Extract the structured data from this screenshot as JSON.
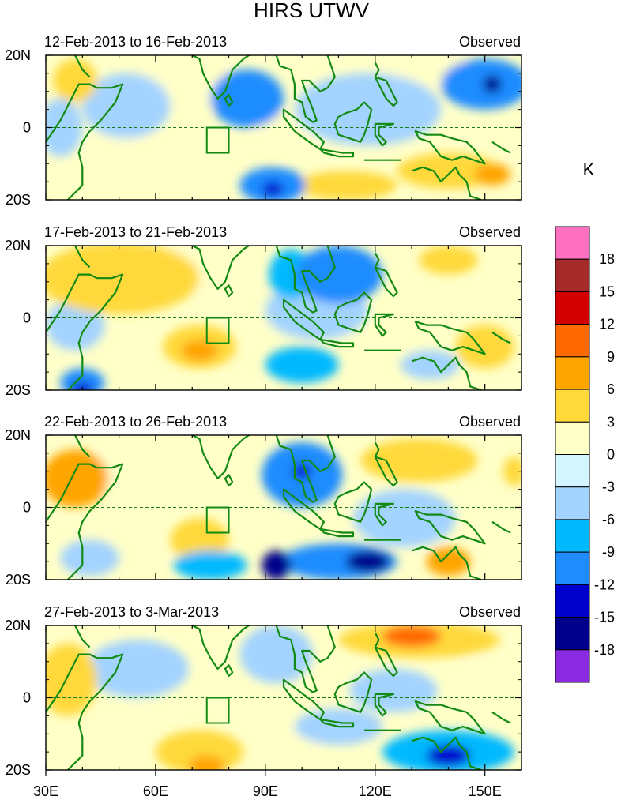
{
  "chart_data": {
    "type": "heatmap",
    "title": "HIRS UTWV",
    "units": "K",
    "xlim": [
      30,
      160
    ],
    "ylim": [
      -20,
      20
    ],
    "x_ticks": [
      {
        "value": 30,
        "label": "30E"
      },
      {
        "value": 60,
        "label": "60E"
      },
      {
        "value": 90,
        "label": "90E"
      },
      {
        "value": 120,
        "label": "120E"
      },
      {
        "value": 150,
        "label": "150E"
      }
    ],
    "y_ticks": [
      {
        "value": 20,
        "label": "20N"
      },
      {
        "value": 0,
        "label": "0"
      },
      {
        "value": -20,
        "label": "20S"
      }
    ],
    "box_region": {
      "lon": [
        74,
        80
      ],
      "lat": [
        -7,
        0
      ]
    },
    "colorbar": {
      "levels": [
        "18",
        "15",
        "12",
        "9",
        "6",
        "3",
        "0",
        "-3",
        "-6",
        "-9",
        "-12",
        "-15",
        "-18"
      ],
      "colors": [
        "#ff70c0",
        "#a52a2a",
        "#d40000",
        "#ff6a00",
        "#ffa500",
        "#ffd93a",
        "#ffffc8",
        "#d3f5ff",
        "#a3d3ff",
        "#00b9ff",
        "#1e8cff",
        "#0000cd",
        "#00008b",
        "#8a2be2"
      ]
    },
    "panels": [
      {
        "period": "12-Feb-2013 to 16-Feb-2013",
        "label": "Observed",
        "blobs": [
          {
            "lon": 63,
            "lat": -7,
            "rlon": 20,
            "rlat": 6,
            "v": 3
          },
          {
            "lon": 140,
            "lat": -12,
            "rlon": 14,
            "rlat": 5,
            "v": 5
          },
          {
            "lon": 152,
            "lat": -13,
            "rlon": 5,
            "rlat": 3,
            "v": 7
          },
          {
            "lon": 112,
            "lat": -16,
            "rlon": 14,
            "rlat": 4,
            "v": 5
          },
          {
            "lon": 95,
            "lat": -2,
            "rlon": 8,
            "rlat": 6,
            "v": 3
          },
          {
            "lon": 68,
            "lat": 12,
            "rlon": 12,
            "rlat": 9,
            "v": 3
          },
          {
            "lon": 38,
            "lat": 13,
            "rlon": 6,
            "rlat": 6,
            "v": 4
          },
          {
            "lon": 85,
            "lat": 8,
            "rlon": 10,
            "rlat": 8,
            "v": -9
          },
          {
            "lon": 150,
            "lat": 12,
            "rlon": 12,
            "rlat": 7,
            "v": -9
          },
          {
            "lon": 152,
            "lat": 12,
            "rlon": 2.5,
            "rlat": 2.5,
            "v": -16
          },
          {
            "lon": 92,
            "lat": -16,
            "rlon": 9,
            "rlat": 5,
            "v": -9
          },
          {
            "lon": 92,
            "lat": -17,
            "rlon": 3,
            "rlat": 2,
            "v": -13
          },
          {
            "lon": 118,
            "lat": 5,
            "rlon": 20,
            "rlat": 10,
            "v": -3
          },
          {
            "lon": 34,
            "lat": 0,
            "rlon": 6,
            "rlat": 8,
            "v": -5
          },
          {
            "lon": 52,
            "lat": 6,
            "rlon": 12,
            "rlat": 9,
            "v": -3
          },
          {
            "lon": 135,
            "lat": 16,
            "rlon": 12,
            "rlat": 5,
            "v": 2
          }
        ]
      },
      {
        "period": "17-Feb-2013 to 21-Feb-2013",
        "label": "Observed",
        "blobs": [
          {
            "lon": 50,
            "lat": 11,
            "rlon": 22,
            "rlat": 10,
            "v": 5
          },
          {
            "lon": 72,
            "lat": 14,
            "rlon": 14,
            "rlat": 7,
            "v": 3
          },
          {
            "lon": 72,
            "lat": -8,
            "rlon": 10,
            "rlat": 6,
            "v": 5
          },
          {
            "lon": 72,
            "lat": -9,
            "rlon": 5,
            "rlat": 3,
            "v": 8
          },
          {
            "lon": 150,
            "lat": -8,
            "rlon": 8,
            "rlat": 6,
            "v": 5
          },
          {
            "lon": 140,
            "lat": 16,
            "rlon": 8,
            "rlat": 4,
            "v": 4
          },
          {
            "lon": 110,
            "lat": 12,
            "rlon": 12,
            "rlat": 8,
            "v": -9
          },
          {
            "lon": 97,
            "lat": 12,
            "rlon": 6,
            "rlat": 7,
            "v": -8
          },
          {
            "lon": 104,
            "lat": 2,
            "rlon": 14,
            "rlat": 8,
            "v": -4
          },
          {
            "lon": 40,
            "lat": -18,
            "rlon": 6,
            "rlat": 4,
            "v": -9
          },
          {
            "lon": 40,
            "lat": -20,
            "rlon": 3,
            "rlat": 2,
            "v": -13
          },
          {
            "lon": 100,
            "lat": -13,
            "rlon": 10,
            "rlat": 5,
            "v": -7
          },
          {
            "lon": 135,
            "lat": -13,
            "rlon": 8,
            "rlat": 4,
            "v": -5
          },
          {
            "lon": 38,
            "lat": -2,
            "rlon": 8,
            "rlat": 7,
            "v": -3
          }
        ]
      },
      {
        "period": "22-Feb-2013 to 26-Feb-2013",
        "label": "Observed",
        "blobs": [
          {
            "lon": 38,
            "lat": 8,
            "rlon": 9,
            "rlat": 8,
            "v": 7
          },
          {
            "lon": 58,
            "lat": 10,
            "rlon": 16,
            "rlat": 9,
            "v": 3
          },
          {
            "lon": 132,
            "lat": 13,
            "rlon": 16,
            "rlat": 6,
            "v": 5
          },
          {
            "lon": 158,
            "lat": 10,
            "rlon": 3,
            "rlat": 4,
            "v": 6
          },
          {
            "lon": 72,
            "lat": -9,
            "rlon": 8,
            "rlat": 6,
            "v": 6
          },
          {
            "lon": 140,
            "lat": -15,
            "rlon": 6,
            "rlat": 4,
            "v": 8
          },
          {
            "lon": 100,
            "lat": 9,
            "rlon": 11,
            "rlat": 9,
            "v": -9
          },
          {
            "lon": 100,
            "lat": 10,
            "rlon": 2.5,
            "rlat": 2,
            "v": -13
          },
          {
            "lon": 110,
            "lat": -15,
            "rlon": 16,
            "rlat": 5,
            "v": -9
          },
          {
            "lon": 118,
            "lat": -15,
            "rlon": 6,
            "rlat": 3,
            "v": -15
          },
          {
            "lon": 93,
            "lat": -16,
            "rlon": 4,
            "rlat": 4,
            "v": -16
          },
          {
            "lon": 75,
            "lat": -16,
            "rlon": 10,
            "rlat": 4,
            "v": -6
          },
          {
            "lon": 128,
            "lat": -3,
            "rlon": 14,
            "rlat": 8,
            "v": -3
          },
          {
            "lon": 42,
            "lat": -14,
            "rlon": 8,
            "rlat": 5,
            "v": -3
          }
        ]
      },
      {
        "period": "27-Feb-2013 to 3-Mar-2013",
        "label": "Observed",
        "blobs": [
          {
            "lon": 132,
            "lat": 16,
            "rlon": 22,
            "rlat": 5,
            "v": 6
          },
          {
            "lon": 130,
            "lat": 17,
            "rlon": 8,
            "rlat": 3,
            "v": 10
          },
          {
            "lon": 72,
            "lat": -15,
            "rlon": 12,
            "rlat": 6,
            "v": 5
          },
          {
            "lon": 74,
            "lat": -19,
            "rlon": 5,
            "rlat": 3,
            "v": 8
          },
          {
            "lon": 36,
            "lat": 5,
            "rlon": 8,
            "rlat": 10,
            "v": 4
          },
          {
            "lon": 98,
            "lat": -12,
            "rlon": 8,
            "rlat": 5,
            "v": 3
          },
          {
            "lon": 140,
            "lat": -15,
            "rlon": 18,
            "rlat": 6,
            "v": -8
          },
          {
            "lon": 140,
            "lat": -16,
            "rlon": 6,
            "rlat": 3,
            "v": -12
          },
          {
            "lon": 110,
            "lat": -8,
            "rlon": 12,
            "rlat": 5,
            "v": -5
          },
          {
            "lon": 93,
            "lat": 12,
            "rlon": 10,
            "rlat": 8,
            "v": -5
          },
          {
            "lon": 125,
            "lat": 2,
            "rlon": 12,
            "rlat": 6,
            "v": -3
          },
          {
            "lon": 55,
            "lat": 8,
            "rlon": 14,
            "rlat": 8,
            "v": -3
          },
          {
            "lon": 150,
            "lat": 5,
            "rlon": 8,
            "rlat": 6,
            "v": 2
          }
        ]
      }
    ]
  }
}
